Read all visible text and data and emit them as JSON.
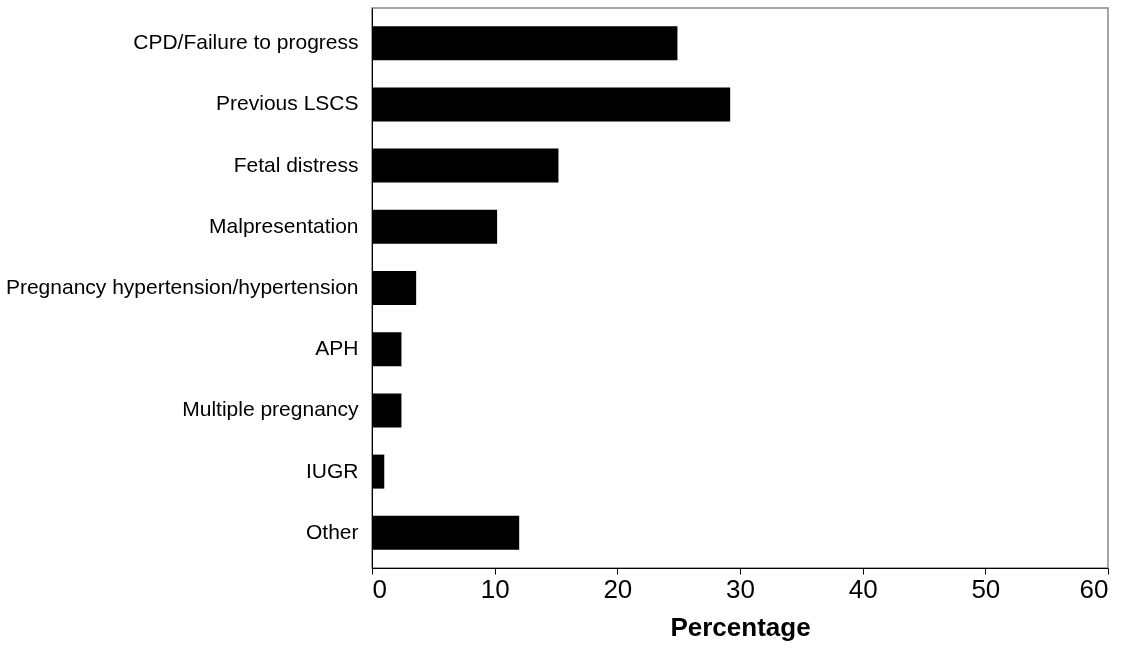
{
  "chart_data": {
    "type": "bar",
    "orientation": "horizontal",
    "xlabel": "Percentage",
    "categories": [
      "CPD/Failure to progress",
      "Previous LSCS",
      "Fetal distress ",
      "Malpresentation",
      "Pregnancy hypertension/hypertension",
      "APH",
      "Multiple pregnancy",
      "IUGR",
      "Other"
    ],
    "values": [
      24.9,
      29.2,
      15.2,
      10.2,
      3.6,
      2.4,
      2.4,
      1.0,
      12.0
    ],
    "color": "#000000",
    "xlim": [
      0,
      60
    ],
    "xticks": [
      0,
      10,
      20,
      30,
      40,
      50,
      60
    ],
    "grid": false
  }
}
